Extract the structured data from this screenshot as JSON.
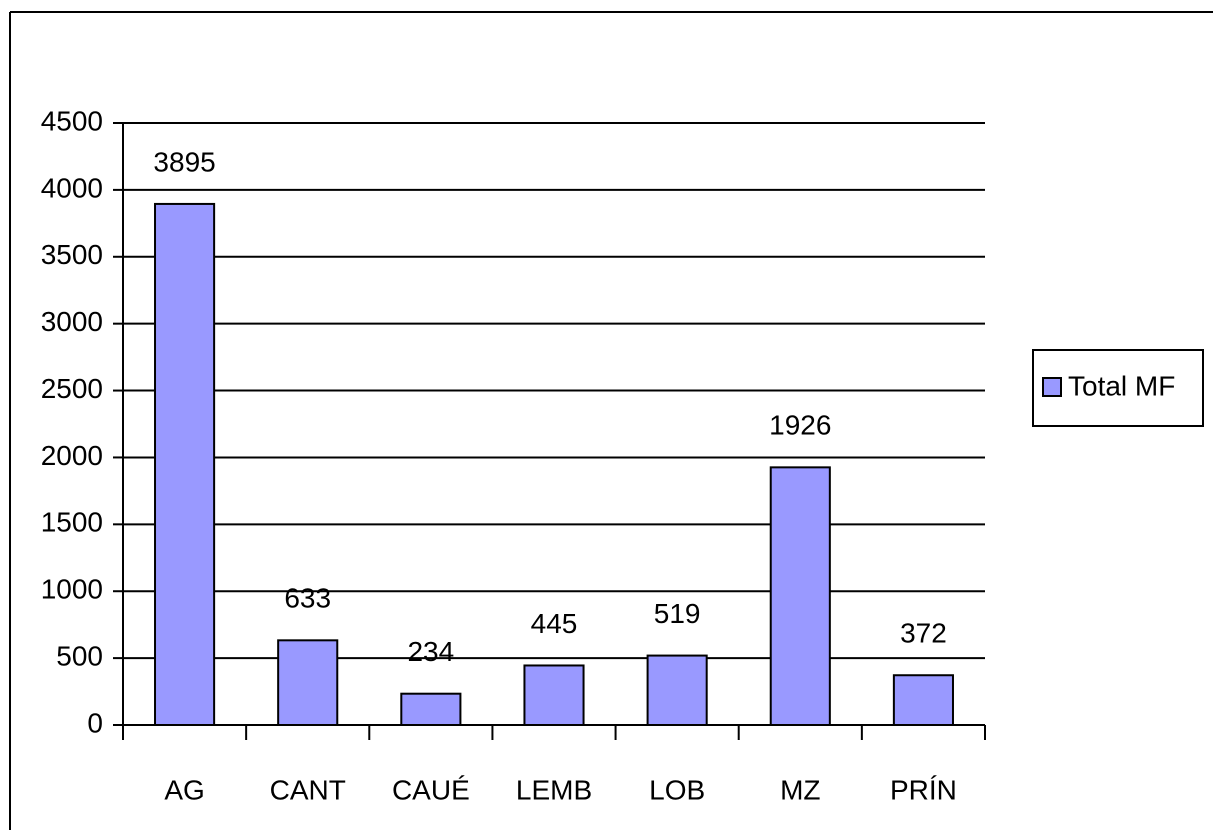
{
  "chart_data": {
    "type": "bar",
    "categories": [
      "AG",
      "CANT",
      "CAUÉ",
      "LEMB",
      "LOB",
      "MZ",
      "PRÍN"
    ],
    "series": [
      {
        "name": "Total MF",
        "color": "#9999ff",
        "values": [
          3895,
          633,
          234,
          445,
          519,
          1926,
          372
        ]
      }
    ],
    "ylim": [
      0,
      4500
    ],
    "yticks": [
      0,
      500,
      1000,
      1500,
      2000,
      2500,
      3000,
      3500,
      4000,
      4500
    ],
    "grid": true,
    "legend": "right",
    "data_labels": true
  }
}
